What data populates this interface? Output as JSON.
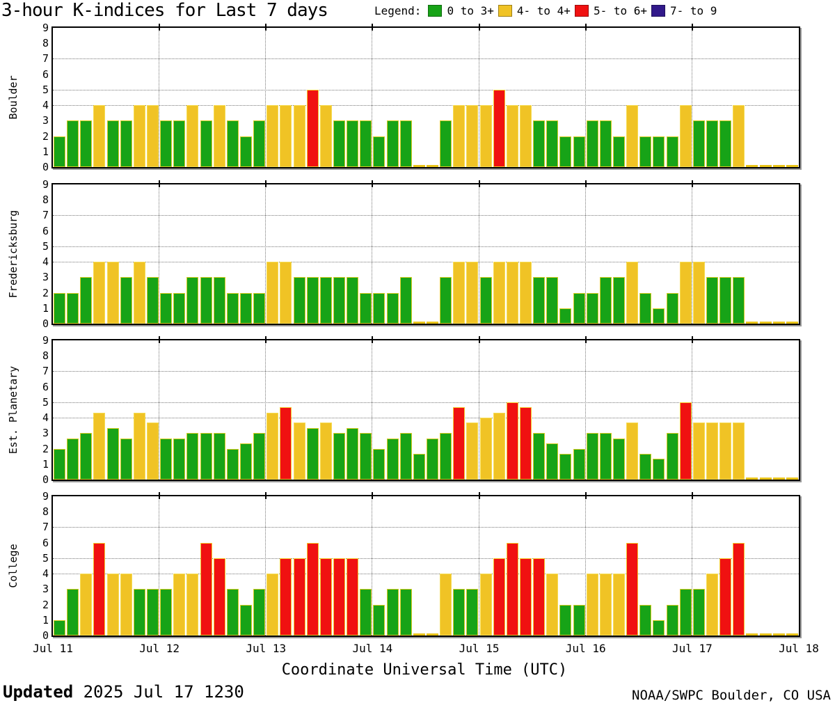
{
  "header": {
    "title": "3-hour K-indices for Last 7 days",
    "legend_label": "Legend:",
    "legend_items": [
      {
        "label": "0 to 3+",
        "color": "#17A317"
      },
      {
        "label": "4- to 4+",
        "color": "#F0C325"
      },
      {
        "label": "5- to 6+",
        "color": "#F01111"
      },
      {
        "label": "7- to 9",
        "color": "#31198A"
      }
    ]
  },
  "chart_data": {
    "type": "bar",
    "title": "3-hour K-indices for Last 7 days",
    "xlabel": "Coordinate Universal Time (UTC)",
    "x_tick_labels": [
      "Jul 11",
      "Jul 12",
      "Jul 13",
      "Jul 14",
      "Jul 15",
      "Jul 16",
      "Jul 17",
      "Jul 18"
    ],
    "ylim": [
      0,
      9
    ],
    "y_ticks": [
      0,
      1,
      2,
      3,
      4,
      5,
      6,
      7,
      8,
      9
    ],
    "gridline_values": [
      4,
      5,
      7
    ],
    "bins_per_day": 8,
    "bin_hours": 3,
    "legend": [
      "0 to 3+",
      "4- to 4+",
      "5- to 6+",
      "7- to 9"
    ],
    "color_thresholds": {
      "green_below": 3.5,
      "yellow_below": 4.5,
      "red_below": 6.5
    },
    "colors": {
      "green": "#17A317",
      "yellow": "#F0C325",
      "red": "#F01111",
      "purple": "#31198A"
    },
    "panels": [
      {
        "station": "Boulder",
        "days": [
          {
            "date": "Jul 11",
            "k": [
              2,
              3,
              3,
              4,
              3,
              3,
              4,
              4
            ]
          },
          {
            "date": "Jul 12",
            "k": [
              3,
              3,
              4,
              3,
              4,
              3,
              2,
              3
            ]
          },
          {
            "date": "Jul 13",
            "k": [
              4,
              4,
              4,
              5,
              4,
              3,
              3,
              3
            ]
          },
          {
            "date": "Jul 14",
            "k": [
              2,
              3,
              3,
              0,
              0,
              3,
              4,
              4
            ]
          },
          {
            "date": "Jul 15",
            "k": [
              4,
              5,
              4,
              4,
              3,
              3,
              2,
              2
            ]
          },
          {
            "date": "Jul 16",
            "k": [
              3,
              3,
              2,
              4,
              2,
              2,
              2,
              4
            ]
          },
          {
            "date": "Jul 17",
            "k": [
              3,
              3,
              3,
              4,
              0,
              0,
              0,
              0
            ]
          }
        ]
      },
      {
        "station": "Fredericksburg",
        "days": [
          {
            "date": "Jul 11",
            "k": [
              2,
              2,
              3,
              4,
              4,
              3,
              4,
              3
            ]
          },
          {
            "date": "Jul 12",
            "k": [
              2,
              2,
              3,
              3,
              3,
              2,
              2,
              2
            ]
          },
          {
            "date": "Jul 13",
            "k": [
              4,
              4,
              3,
              3,
              3,
              3,
              3,
              2
            ]
          },
          {
            "date": "Jul 14",
            "k": [
              2,
              2,
              3,
              0,
              0,
              3,
              4,
              4
            ]
          },
          {
            "date": "Jul 15",
            "k": [
              3,
              4,
              4,
              4,
              3,
              3,
              1,
              2
            ]
          },
          {
            "date": "Jul 16",
            "k": [
              2,
              3,
              3,
              4,
              2,
              1,
              2,
              4
            ]
          },
          {
            "date": "Jul 17",
            "k": [
              4,
              3,
              3,
              3,
              0,
              0,
              0,
              0
            ]
          }
        ]
      },
      {
        "station": "Est. Planetary",
        "days": [
          {
            "date": "Jul 11",
            "k": [
              2.0,
              2.67,
              3.0,
              4.33,
              3.33,
              2.67,
              4.33,
              3.67
            ]
          },
          {
            "date": "Jul 12",
            "k": [
              2.67,
              2.67,
              3.0,
              3.0,
              3.0,
              2.0,
              2.33,
              3.0
            ]
          },
          {
            "date": "Jul 13",
            "k": [
              4.33,
              4.67,
              3.67,
              3.33,
              3.67,
              3.0,
              3.33,
              3.0
            ]
          },
          {
            "date": "Jul 14",
            "k": [
              2.0,
              2.67,
              3.0,
              1.67,
              2.67,
              3.0,
              4.67,
              3.67
            ]
          },
          {
            "date": "Jul 15",
            "k": [
              4.0,
              4.33,
              5.0,
              4.67,
              3.0,
              2.33,
              1.67,
              2.0
            ]
          },
          {
            "date": "Jul 16",
            "k": [
              3.0,
              3.0,
              2.67,
              3.67,
              1.67,
              1.33,
              3.0,
              5.0
            ]
          },
          {
            "date": "Jul 17",
            "k": [
              3.67,
              3.67,
              3.67,
              3.67,
              0,
              0,
              0,
              0
            ]
          }
        ]
      },
      {
        "station": "College",
        "days": [
          {
            "date": "Jul 11",
            "k": [
              1,
              3,
              4,
              6,
              4,
              4,
              3,
              3
            ]
          },
          {
            "date": "Jul 12",
            "k": [
              3,
              4,
              4,
              6,
              5,
              3,
              2,
              3
            ]
          },
          {
            "date": "Jul 13",
            "k": [
              4,
              5,
              5,
              6,
              5,
              5,
              5,
              3
            ]
          },
          {
            "date": "Jul 14",
            "k": [
              2,
              3,
              3,
              0,
              0,
              4,
              3,
              3
            ]
          },
          {
            "date": "Jul 15",
            "k": [
              4,
              5,
              6,
              5,
              5,
              4,
              2,
              2
            ]
          },
          {
            "date": "Jul 16",
            "k": [
              4,
              4,
              4,
              6,
              2,
              1,
              2,
              3
            ]
          },
          {
            "date": "Jul 17",
            "k": [
              3,
              4,
              5,
              6,
              0,
              0,
              0,
              0
            ]
          }
        ]
      }
    ]
  },
  "footer": {
    "updated_label": "Updated",
    "updated_value": "2025 Jul 17 1230",
    "credit": "NOAA/SWPC Boulder, CO USA"
  }
}
